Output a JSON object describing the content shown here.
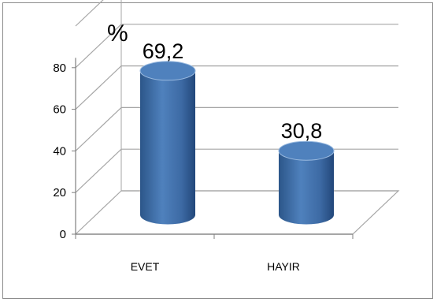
{
  "chart_data": {
    "type": "bar",
    "style": "3d-cylinder",
    "unit_label": "%",
    "categories": [
      "EVET",
      "HAYIR"
    ],
    "values": [
      69.2,
      30.8
    ],
    "data_labels": [
      "69,2",
      "30,8"
    ],
    "yticks": [
      0,
      20,
      40,
      60,
      80
    ],
    "ylim": [
      0,
      100
    ],
    "grid": true,
    "legend": "none",
    "colors": {
      "bar": "#4f81bd",
      "bar_dark": "#2c5689",
      "bar_top": "#9bbbe0",
      "grid": "#a6a6a6",
      "frame": "#8c8c8c"
    }
  }
}
